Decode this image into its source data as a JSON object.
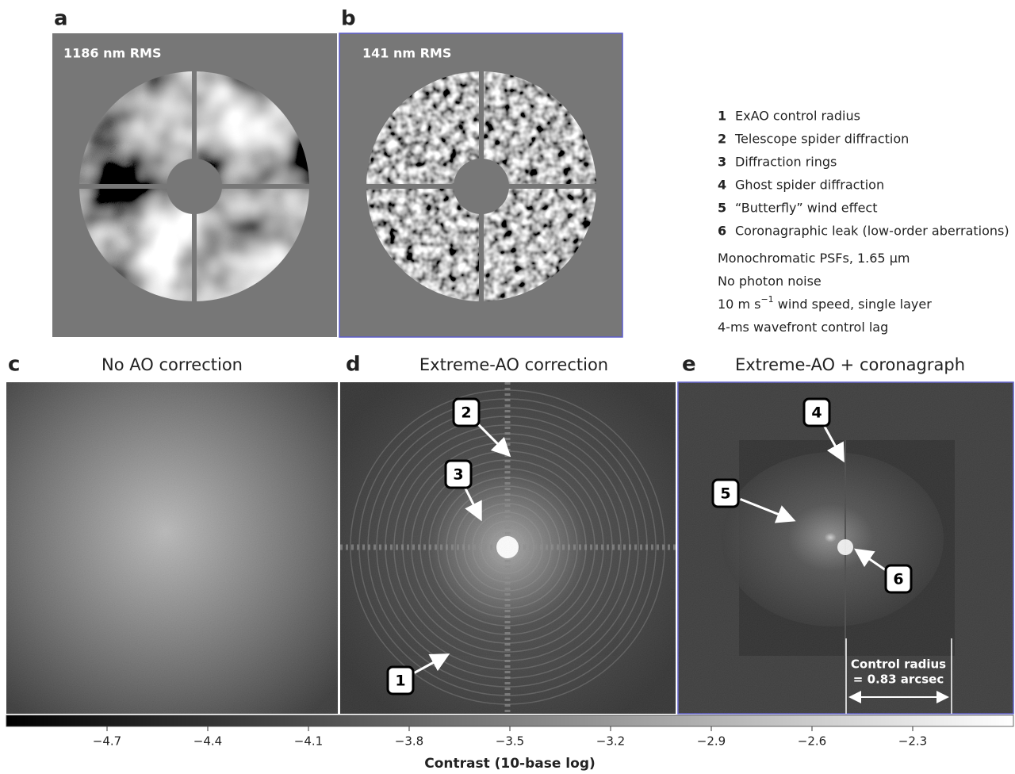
{
  "panels": {
    "a": {
      "letter": "a",
      "rms": "1186 nm RMS"
    },
    "b": {
      "letter": "b",
      "rms": "141 nm RMS"
    },
    "c": {
      "letter": "c",
      "title": "No AO correction"
    },
    "d": {
      "letter": "d",
      "title": "Extreme-AO correction"
    },
    "e": {
      "letter": "e",
      "title": "Extreme-AO + coronagraph"
    }
  },
  "legend": [
    {
      "number": "1",
      "text": "ExAO control radius"
    },
    {
      "number": "2",
      "text": "Telescope spider diffraction"
    },
    {
      "number": "3",
      "text": "Diffraction rings"
    },
    {
      "number": "4",
      "text": "Ghost spider diffraction"
    },
    {
      "number": "5",
      "text": "“Butterfly” wind effect"
    },
    {
      "number": "6",
      "text": "Coronagraphic leak (low-order aberrations)"
    }
  ],
  "notes": [
    {
      "text": "Monochromatic PSFs, 1.65 µm"
    },
    {
      "text": "No photon noise"
    },
    {
      "text": "10 m s",
      "sup": "−1",
      "rest": " wind speed, single layer"
    },
    {
      "text": "4-ms wavefront control lag"
    }
  ],
  "callouts": [
    "1",
    "2",
    "3",
    "4",
    "5",
    "6"
  ],
  "control_radius": [
    "Control radius",
    "= 0.83 arcsec"
  ],
  "colorbar": {
    "label": "Contrast (10-base log)",
    "lim": [
      -5,
      -2
    ],
    "ticks": [
      {
        "value": -4.7,
        "label": "−4.7"
      },
      {
        "value": -4.4,
        "label": "−4.4"
      },
      {
        "value": -4.1,
        "label": "−4.1"
      },
      {
        "value": -3.8,
        "label": "−3.8"
      },
      {
        "value": -3.5,
        "label": "−3.5"
      },
      {
        "value": -3.2,
        "label": "−3.2"
      },
      {
        "value": -2.9,
        "label": "−2.9"
      },
      {
        "value": -2.6,
        "label": "−2.6"
      },
      {
        "value": -2.3,
        "label": "−2.3"
      }
    ]
  }
}
